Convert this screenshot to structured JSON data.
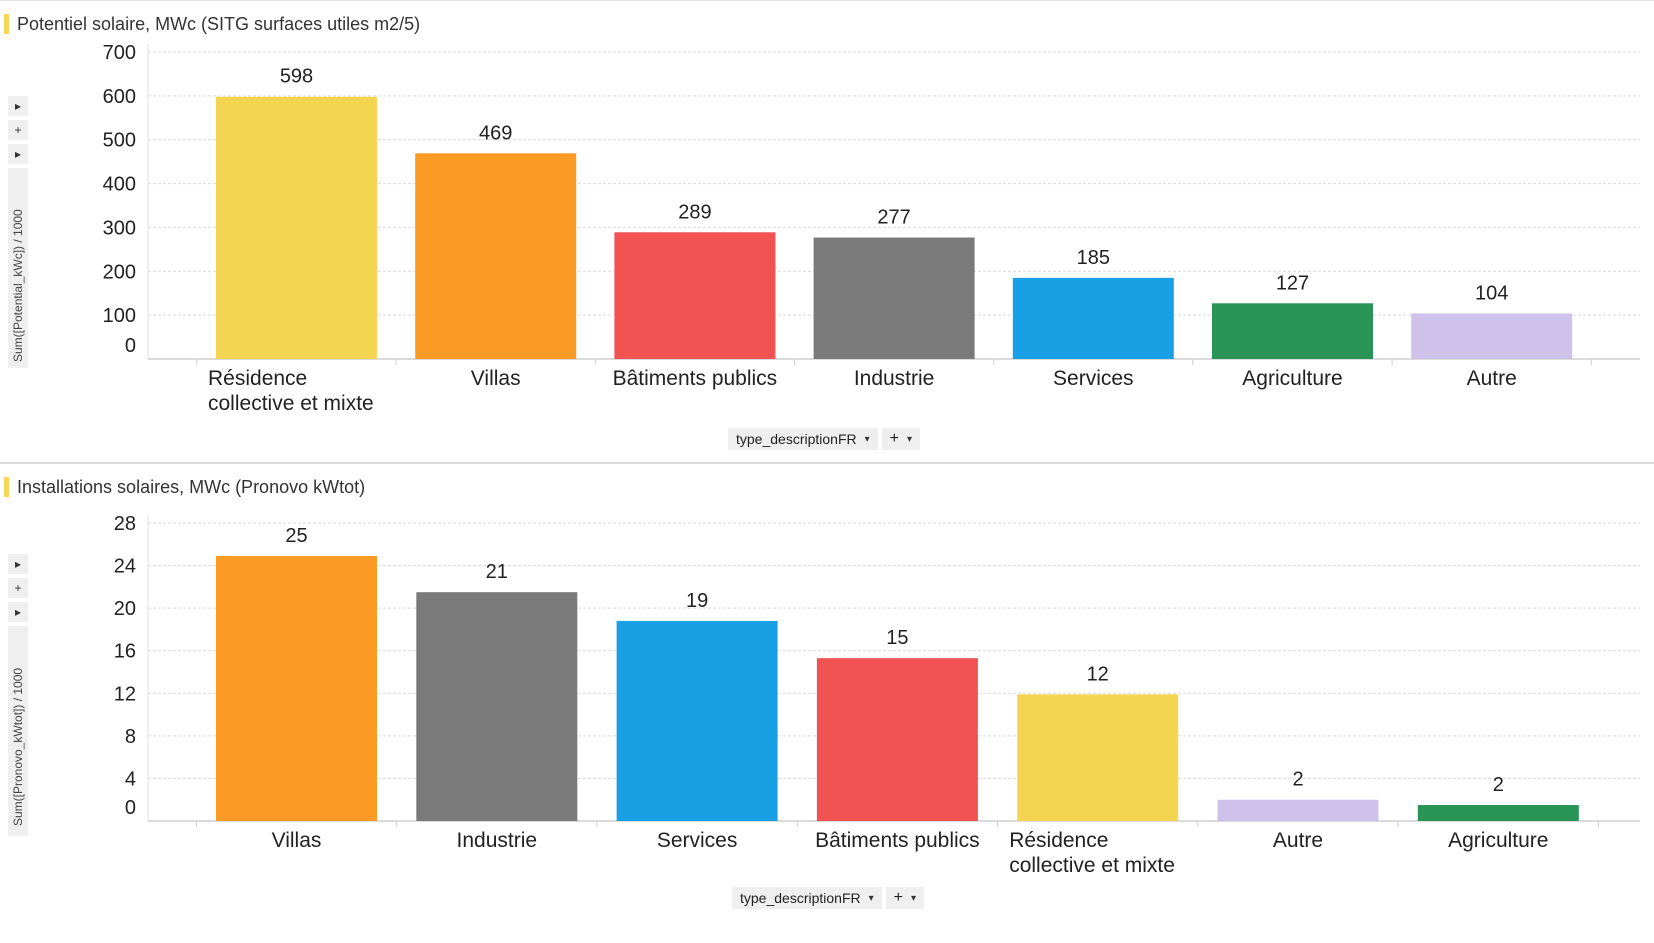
{
  "chart_data": [
    {
      "type": "bar",
      "title": "Potentiel solaire, MWc (SITG surfaces utiles m2/5)",
      "ylabel": "Sum([Potential_kWc]) / 1000",
      "xlabel": "type_descriptionFR",
      "categories": [
        "Résidence collective et mixte",
        "Villas",
        "Bâtiments publics",
        "Industrie",
        "Services",
        "Agriculture",
        "Autre"
      ],
      "values": [
        598,
        469,
        289,
        277,
        185,
        127,
        104
      ],
      "colors": [
        "#f3d552",
        "#fb9a25",
        "#f15252",
        "#7a7a7a",
        "#199fe4",
        "#2a9457",
        "#cec2ea"
      ],
      "yticks": [
        0,
        100,
        200,
        300,
        400,
        500,
        600,
        700
      ],
      "ylim": [
        0,
        700
      ],
      "grid": true,
      "legend": "none"
    },
    {
      "type": "bar",
      "title": "Installations solaires, MWc (Pronovo kWtot)",
      "ylabel": "Sum([Pronovo_kWtot]) / 1000",
      "xlabel": "type_descriptionFR",
      "categories": [
        "Villas",
        "Industrie",
        "Services",
        "Bâtiments publics",
        "Résidence collective et mixte",
        "Autre",
        "Agriculture"
      ],
      "values": [
        25,
        21,
        19,
        15,
        12,
        2,
        2
      ],
      "bar_values": [
        24.9,
        21.5,
        18.8,
        15.3,
        11.9,
        2.0,
        1.5
      ],
      "colors": [
        "#fb9a25",
        "#7a7a7a",
        "#199fe4",
        "#f15252",
        "#f3d552",
        "#cec2ea",
        "#2a9457"
      ],
      "yticks": [
        0,
        4,
        8,
        12,
        16,
        20,
        24,
        28
      ],
      "ylim": [
        0,
        28
      ],
      "grid": true,
      "legend": "none"
    }
  ],
  "controls": {
    "side_expand": "▸",
    "side_add": "+",
    "x_add": "+",
    "caret": "▾"
  },
  "icons": [
    "chevron-right-icon",
    "plus-icon",
    "caret-down-icon"
  ]
}
